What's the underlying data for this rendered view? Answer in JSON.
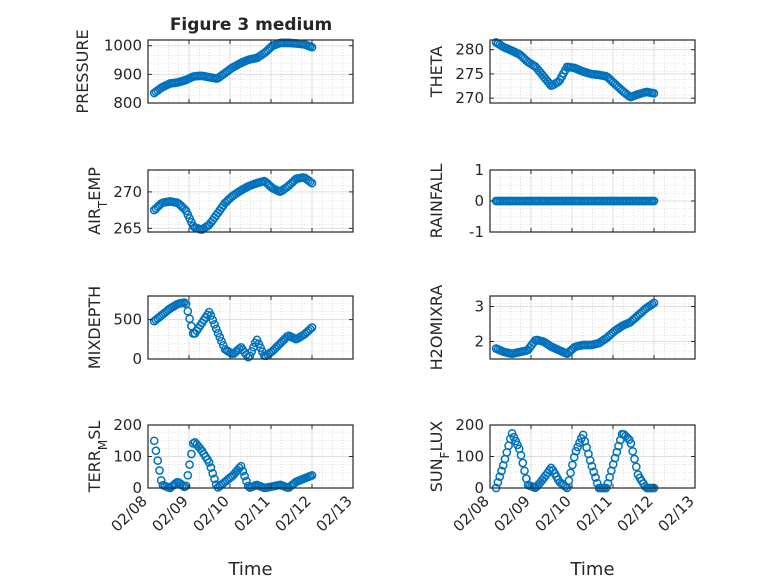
{
  "figure_title": "Figure 3 medium",
  "colors": {
    "marker": "#0072BD",
    "axis": "#262626",
    "grid": "#c8c8c8"
  },
  "chart_data": [
    {
      "type": "scatter",
      "title": "Figure 3 medium",
      "ylabel": "PRESSURE",
      "ylim": [
        800,
        1020
      ],
      "yticks": [
        800,
        900,
        1000
      ],
      "grid": true,
      "x": [
        "02/08",
        "02/08",
        "02/08",
        "02/08",
        "02/08",
        "02/09",
        "02/09",
        "02/09",
        "02/09",
        "02/09",
        "02/10",
        "02/10",
        "02/10",
        "02/10",
        "02/10",
        "02/11",
        "02/11",
        "02/11",
        "02/11",
        "02/11",
        "02/12"
      ],
      "values": [
        835,
        855,
        868,
        872,
        880,
        893,
        895,
        890,
        885,
        905,
        925,
        940,
        952,
        957,
        975,
        1000,
        1010,
        1010,
        1008,
        1005,
        995
      ]
    },
    {
      "type": "scatter",
      "ylabel": "THETA",
      "ylim": [
        269,
        282
      ],
      "yticks": [
        270,
        275,
        280
      ],
      "grid": true,
      "values": [
        281.5,
        280.5,
        279.8,
        279,
        277.5,
        276.5,
        274.5,
        272.5,
        273.5,
        276.5,
        276.2,
        275.5,
        275,
        274.8,
        274.5,
        273,
        271.5,
        270.2,
        270.8,
        271.3,
        271
      ]
    },
    {
      "type": "scatter",
      "ylabel": "AIR_TEMP",
      "ylim": [
        264.5,
        273
      ],
      "yticks": [
        265,
        270
      ],
      "grid": true,
      "values": [
        267.5,
        268.5,
        268.7,
        268.5,
        267.5,
        265.2,
        264.8,
        265.5,
        267,
        268.5,
        269.5,
        270.2,
        270.8,
        271.2,
        271.5,
        270.5,
        270,
        270.8,
        271.8,
        272,
        271.2
      ]
    },
    {
      "type": "scatter",
      "ylabel": "RAINFALL",
      "ylim": [
        -1,
        1
      ],
      "yticks": [
        -1,
        0,
        1
      ],
      "grid": true,
      "values": [
        0,
        0,
        0,
        0,
        0,
        0,
        0,
        0,
        0,
        0,
        0,
        0,
        0,
        0,
        0,
        0,
        0,
        0,
        0,
        0,
        0
      ]
    },
    {
      "type": "scatter",
      "ylabel": "MIXDEPTH",
      "ylim": [
        0,
        800
      ],
      "yticks": [
        0,
        500
      ],
      "grid": true,
      "values": [
        480,
        560,
        640,
        700,
        720,
        300,
        450,
        600,
        350,
        120,
        60,
        150,
        10,
        250,
        30,
        100,
        200,
        300,
        250,
        310,
        400
      ]
    },
    {
      "type": "scatter",
      "ylabel": "H2OMIXRA",
      "ylim": [
        1.5,
        3.3
      ],
      "yticks": [
        2,
        3
      ],
      "grid": true,
      "values": [
        1.8,
        1.7,
        1.65,
        1.7,
        1.75,
        2.05,
        2.0,
        1.85,
        1.75,
        1.65,
        1.85,
        1.9,
        1.9,
        1.95,
        2.1,
        2.3,
        2.45,
        2.55,
        2.75,
        2.95,
        3.1
      ]
    },
    {
      "type": "scatter",
      "ylabel": "TERR_MSL",
      "ylim": [
        0,
        200
      ],
      "yticks": [
        0,
        100,
        200
      ],
      "grid": true,
      "values": [
        150,
        10,
        0,
        20,
        0,
        150,
        120,
        80,
        0,
        20,
        40,
        70,
        0,
        10,
        0,
        5,
        10,
        0,
        20,
        30,
        40
      ]
    },
    {
      "type": "scatter",
      "ylabel": "SUN_FLUX",
      "ylim": [
        0,
        200
      ],
      "yticks": [
        0,
        100,
        200
      ],
      "grid": true,
      "values": [
        0,
        80,
        175,
        120,
        10,
        0,
        30,
        65,
        20,
        0,
        110,
        170,
        80,
        0,
        0,
        90,
        175,
        150,
        40,
        0,
        0
      ]
    }
  ],
  "x_axis": {
    "ticks": [
      "02/08",
      "02/09",
      "02/10",
      "02/11",
      "02/12",
      "02/13"
    ],
    "label": "Time"
  }
}
